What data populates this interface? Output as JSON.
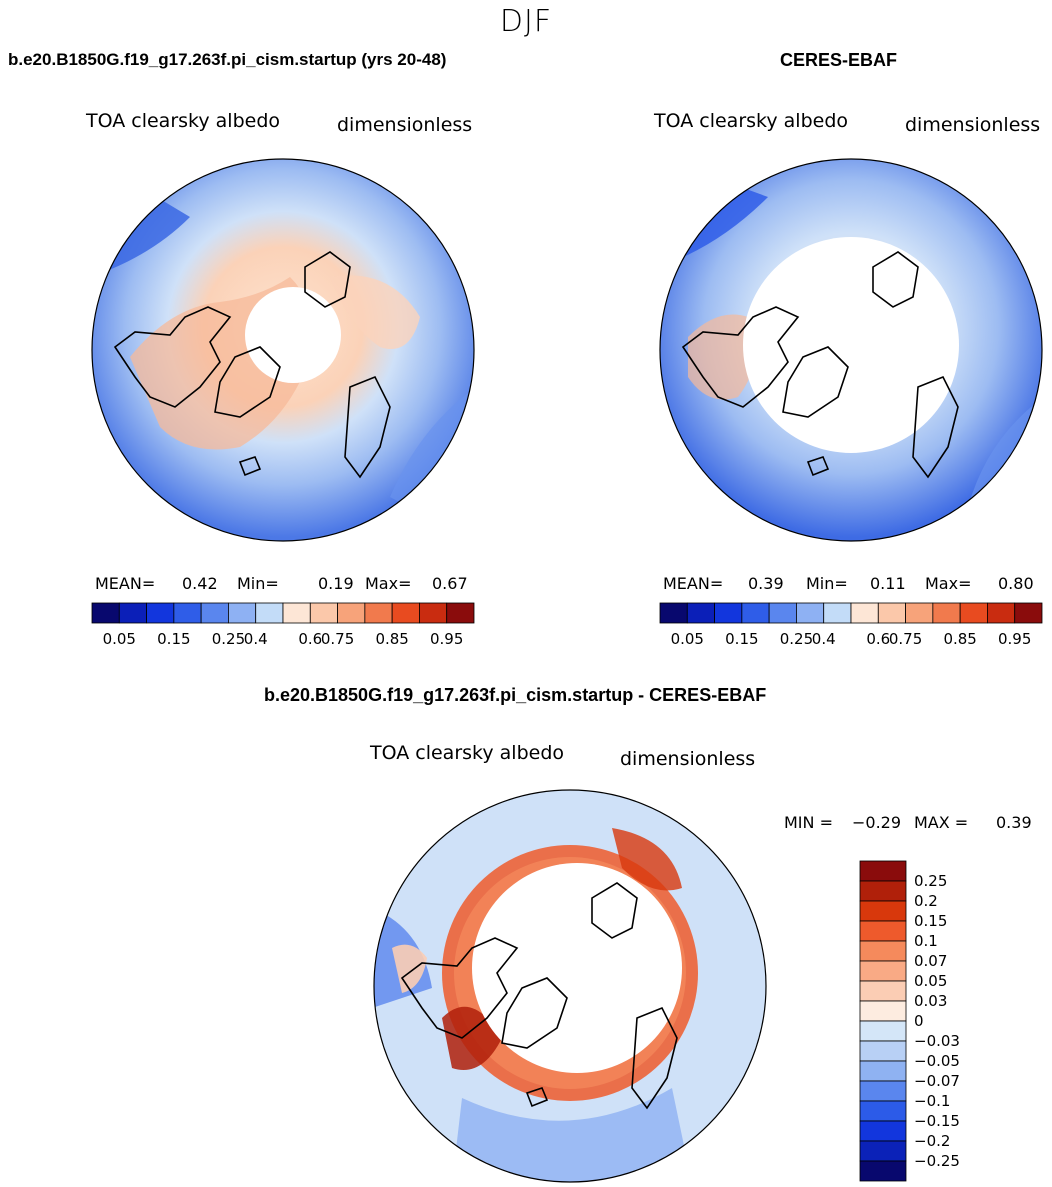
{
  "season": "DJF",
  "panels": [
    {
      "case_title": "b.e20.B1850G.f19_g17.263f.pi_cism.startup (yrs 20-48)",
      "variable": "TOA clearsky albedo",
      "units": "dimensionless",
      "stats": {
        "mean_label": "MEAN=",
        "mean": "0.42",
        "min_label": "Min=",
        "min": "0.19",
        "max_label": "Max=",
        "max": "0.67"
      }
    },
    {
      "case_title": "CERES-EBAF",
      "variable": "TOA clearsky albedo",
      "units": "dimensionless",
      "stats": {
        "mean_label": "MEAN=",
        "mean": "0.39",
        "min_label": "Min=",
        "min": "0.11",
        "max_label": "Max=",
        "max": "0.80"
      }
    }
  ],
  "abs_colorbar": {
    "colors": [
      "#08086e",
      "#0b1fb8",
      "#1236dd",
      "#2f5de8",
      "#5a86ee",
      "#8eb1f3",
      "#c3dcf8",
      "#fde6d6",
      "#fbc8aa",
      "#f7a37a",
      "#f17a4d",
      "#e84b20",
      "#c92c10",
      "#8a0c0c"
    ],
    "tick_labels": [
      "0.05",
      "0.15",
      "0.25",
      "0.4",
      "0.6",
      "0.75",
      "0.85",
      "0.95"
    ]
  },
  "diff_panel": {
    "case_title": "b.e20.B1850G.f19_g17.263f.pi_cism.startup - CERES-EBAF",
    "variable": "TOA clearsky albedo",
    "units": "dimensionless",
    "min_label": "MIN =",
    "min": "−0.29",
    "max_label": "MAX =",
    "max": "0.39",
    "colorbar": {
      "colors": [
        "#8a0c0c",
        "#b0200a",
        "#d8380c",
        "#ee5a2c",
        "#f58a5c",
        "#f9aa85",
        "#fbcdb4",
        "#fdece0",
        "#d4e6f8",
        "#b8d0f5",
        "#8fb2f2",
        "#5a86ee",
        "#2c5be8",
        "#1236dd",
        "#0b22b8",
        "#08086e"
      ],
      "labels": [
        "0.25",
        "0.2",
        "0.15",
        "0.1",
        "0.07",
        "0.05",
        "0.03",
        "0",
        "−0.03",
        "−0.05",
        "−0.07",
        "−0.1",
        "−0.15",
        "−0.2",
        "−0.25"
      ]
    }
  }
}
